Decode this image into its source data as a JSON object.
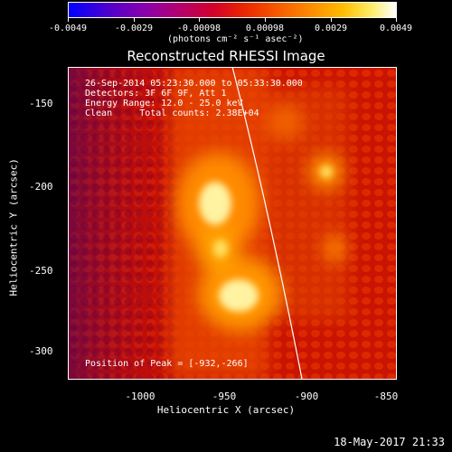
{
  "colorbar": {
    "tick_labels": [
      "-0.0049",
      "-0.0029",
      "-0.00098",
      "0.00098",
      "0.0029",
      "0.0049"
    ],
    "units": "(photons cm⁻² s⁻¹ asec⁻²)",
    "gradient_colors": [
      "#0000ff",
      "#8c00a8",
      "#d2002c",
      "#f65a00",
      "#ffbe00",
      "#ffffff"
    ]
  },
  "title": "Reconstructed RHESSI Image",
  "info": {
    "line1": "26-Sep-2014 05:23:30.000 to 05:33:30.000",
    "line2": "Detectors: 3F 6F 9F, Att 1",
    "line3": "Energy Range: 12.0 - 25.0 keV",
    "line4": "Clean     Total counts: 2.38E+04",
    "peak": "Position of Peak = [-932,-266]"
  },
  "axes": {
    "xlabel": "Heliocentric X (arcsec)",
    "ylabel": "Heliocentric Y (arcsec)",
    "xticks": [
      "-1000",
      "-950",
      "-900",
      "-850"
    ],
    "yticks": [
      "-150",
      "-200",
      "-250",
      "-300"
    ],
    "xrange": [
      -1045,
      -850
    ],
    "yrange": [
      -320,
      -135
    ]
  },
  "timestamp": "18-May-2017 21:33"
}
